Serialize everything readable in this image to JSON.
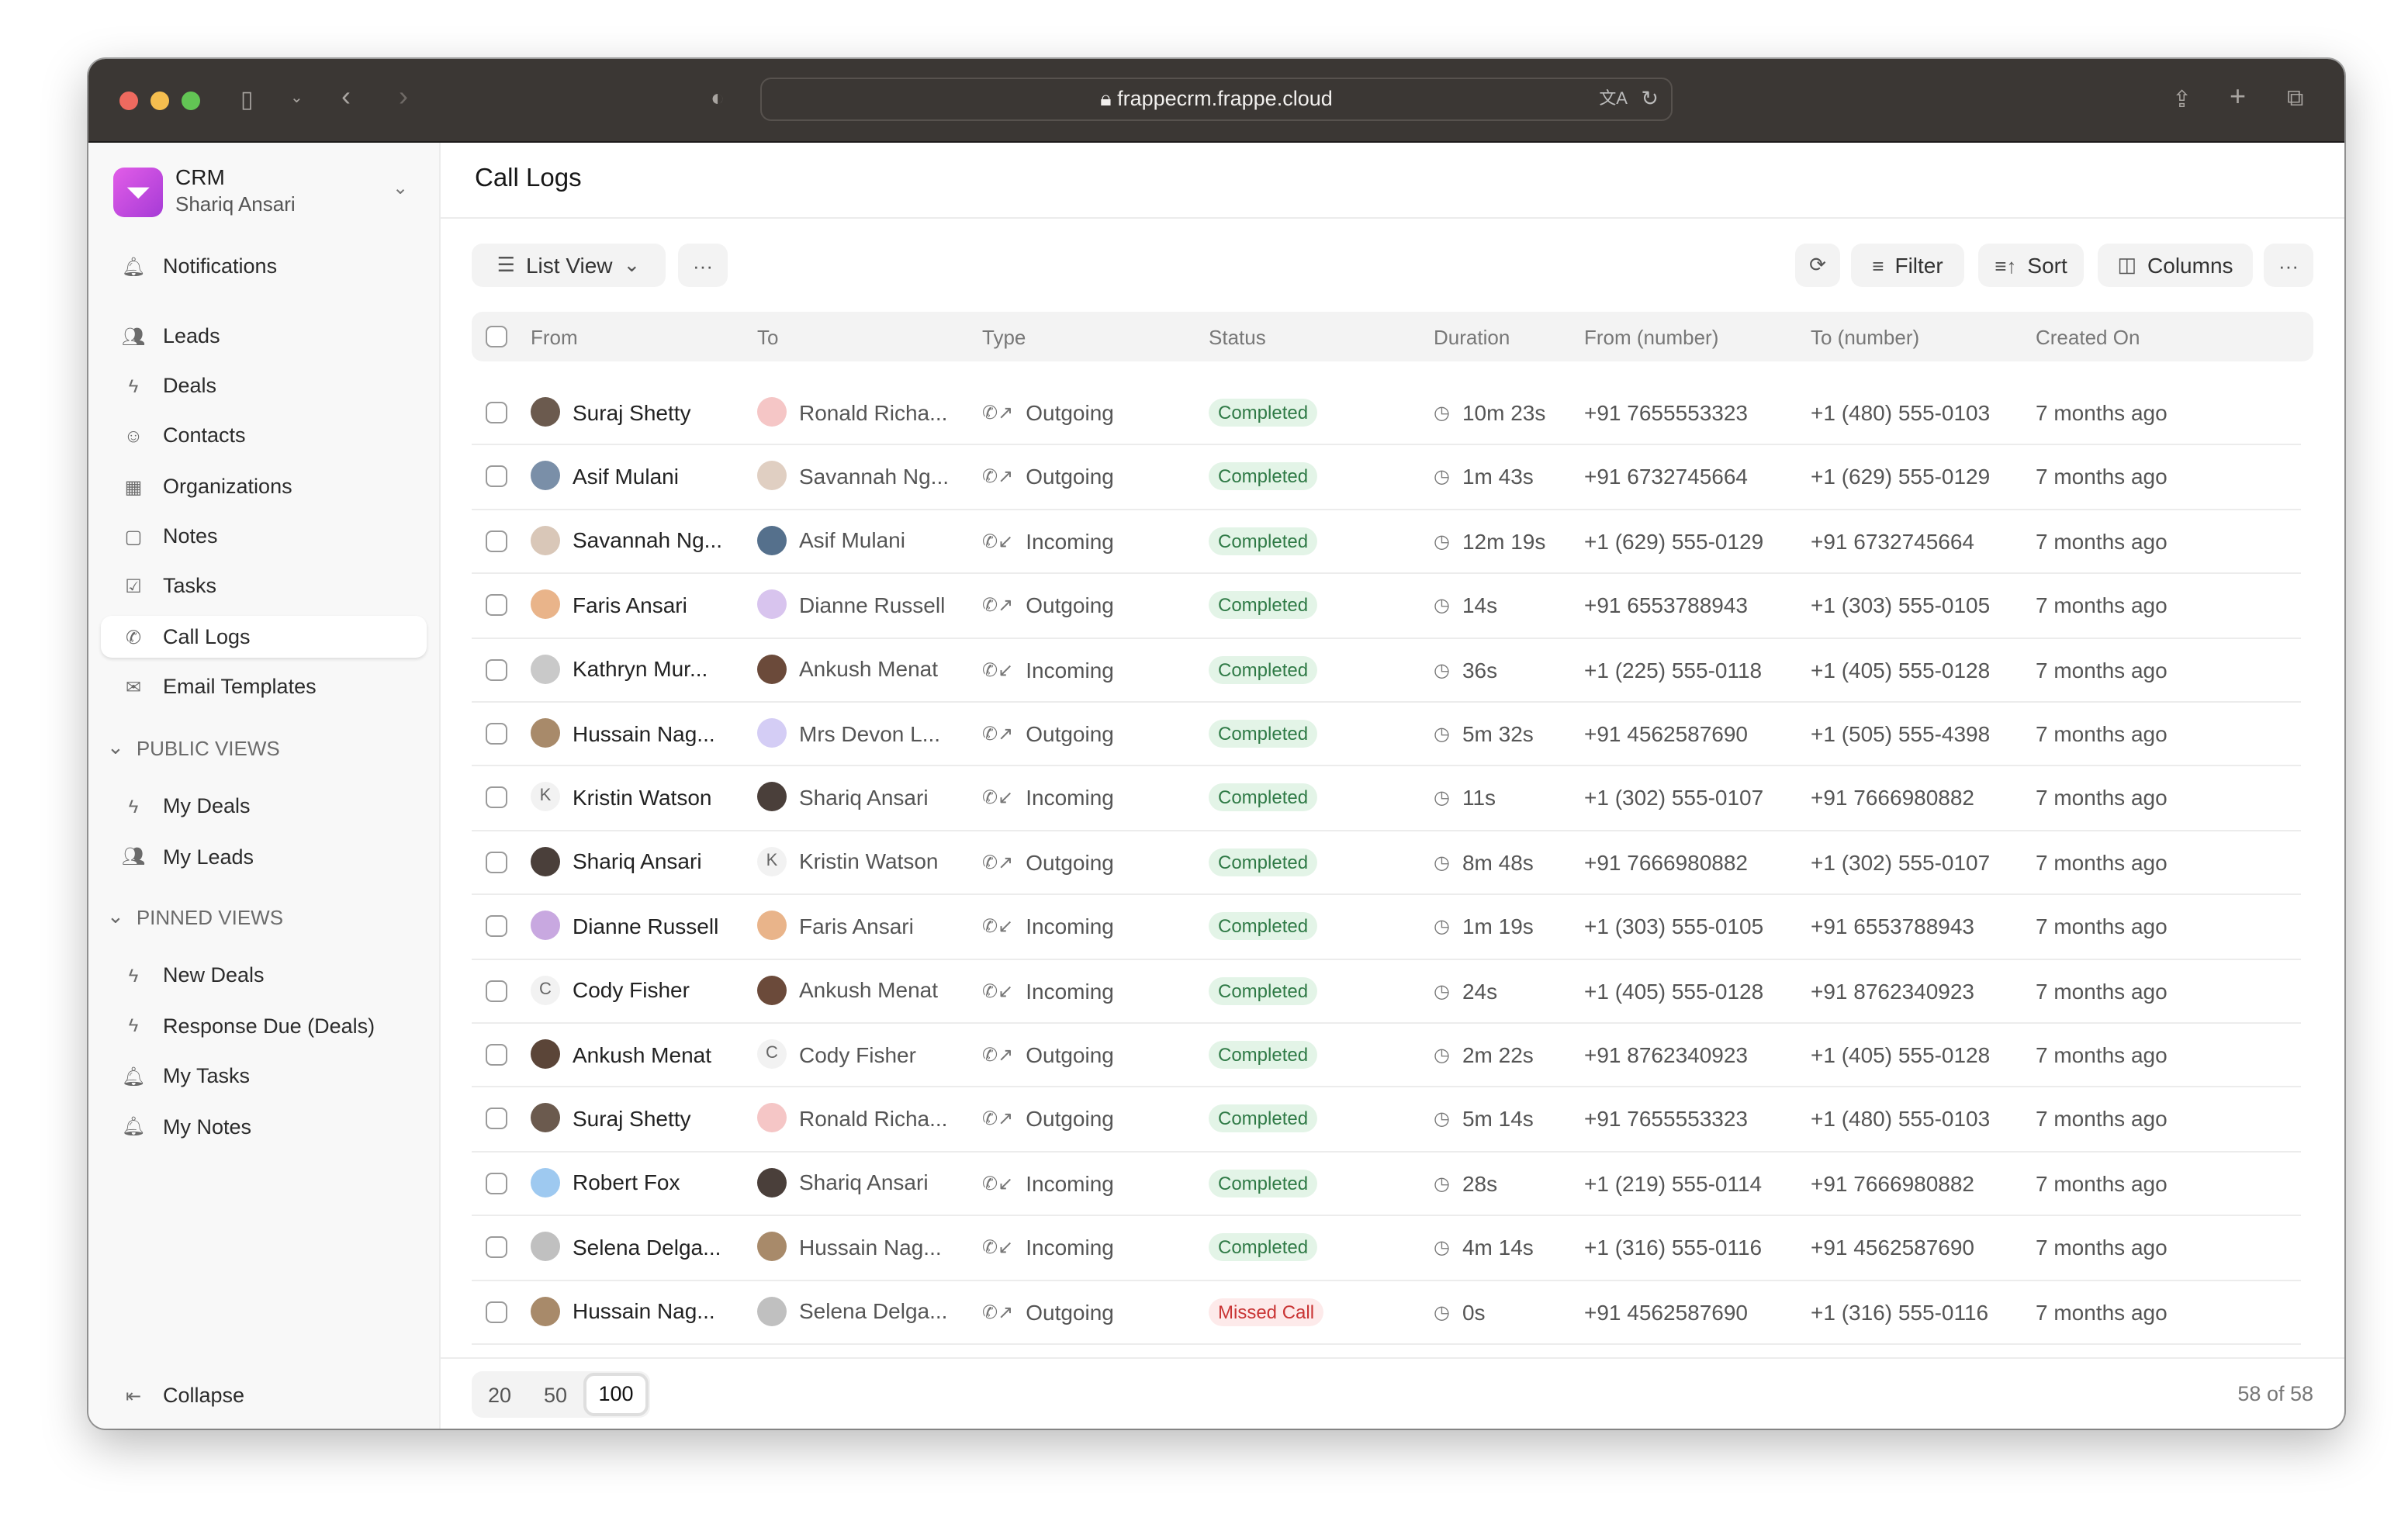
{
  "browser": {
    "url": "frappecrm.frappe.cloud"
  },
  "app": {
    "name": "CRM",
    "user": "Shariq Ansari"
  },
  "sidebar": {
    "items": [
      {
        "label": "Notifications",
        "icon": "bell-icon"
      },
      {
        "label": "Leads",
        "icon": "users-icon"
      },
      {
        "label": "Deals",
        "icon": "zap-icon"
      },
      {
        "label": "Contacts",
        "icon": "contact-icon"
      },
      {
        "label": "Organizations",
        "icon": "building-icon"
      },
      {
        "label": "Notes",
        "icon": "file-icon"
      },
      {
        "label": "Tasks",
        "icon": "checkbox-icon"
      },
      {
        "label": "Call Logs",
        "icon": "phone-icon",
        "active": true
      },
      {
        "label": "Email Templates",
        "icon": "mail-icon"
      }
    ],
    "public_views_label": "PUBLIC VIEWS",
    "public_views": [
      {
        "label": "My Deals",
        "icon": "zap-icon"
      },
      {
        "label": "My Leads",
        "icon": "users-icon"
      }
    ],
    "pinned_views_label": "PINNED VIEWS",
    "pinned_views": [
      {
        "label": "New Deals",
        "icon": "zap-icon"
      },
      {
        "label": "Response Due (Deals)",
        "icon": "zap-icon"
      },
      {
        "label": "My Tasks",
        "icon": "bell-icon"
      },
      {
        "label": "My Notes",
        "icon": "bell-icon"
      }
    ],
    "collapse_label": "Collapse"
  },
  "page": {
    "title": "Call Logs"
  },
  "toolbar": {
    "view_label": "List View",
    "filter_label": "Filter",
    "sort_label": "Sort",
    "columns_label": "Columns"
  },
  "table": {
    "columns": [
      "From",
      "To",
      "Type",
      "Status",
      "Duration",
      "From (number)",
      "To (number)",
      "Created On"
    ],
    "rows": [
      {
        "from": "Suraj Shetty",
        "to": "Ronald Richa...",
        "type": "Outgoing",
        "status": "Completed",
        "duration": "10m 23s",
        "from_number": "+91 7655553323",
        "to_number": "+1 (480) 555-0103",
        "created": "7 months ago"
      },
      {
        "from": "Asif Mulani",
        "to": "Savannah Ng...",
        "type": "Outgoing",
        "status": "Completed",
        "duration": "1m 43s",
        "from_number": "+91 6732745664",
        "to_number": "+1 (629) 555-0129",
        "created": "7 months ago"
      },
      {
        "from": "Savannah Ng...",
        "to": "Asif Mulani",
        "type": "Incoming",
        "status": "Completed",
        "duration": "12m 19s",
        "from_number": "+1 (629) 555-0129",
        "to_number": "+91 6732745664",
        "created": "7 months ago"
      },
      {
        "from": "Faris Ansari",
        "to": "Dianne Russell",
        "type": "Outgoing",
        "status": "Completed",
        "duration": "14s",
        "from_number": "+91 6553788943",
        "to_number": "+1 (303) 555-0105",
        "created": "7 months ago"
      },
      {
        "from": "Kathryn Mur...",
        "to": "Ankush Menat",
        "type": "Incoming",
        "status": "Completed",
        "duration": "36s",
        "from_number": "+1 (225) 555-0118",
        "to_number": "+1 (405) 555-0128",
        "created": "7 months ago"
      },
      {
        "from": "Hussain Nag...",
        "to": "Mrs Devon L...",
        "type": "Outgoing",
        "status": "Completed",
        "duration": "5m 32s",
        "from_number": "+91 4562587690",
        "to_number": "+1 (505) 555-4398",
        "created": "7 months ago"
      },
      {
        "from": "Kristin Watson",
        "from_initial": "K",
        "to": "Shariq Ansari",
        "type": "Incoming",
        "status": "Completed",
        "duration": "11s",
        "from_number": "+1 (302) 555-0107",
        "to_number": "+91 7666980882",
        "created": "7 months ago"
      },
      {
        "from": "Shariq Ansari",
        "to": "Kristin Watson",
        "to_initial": "K",
        "type": "Outgoing",
        "status": "Completed",
        "duration": "8m 48s",
        "from_number": "+91 7666980882",
        "to_number": "+1 (302) 555-0107",
        "created": "7 months ago"
      },
      {
        "from": "Dianne Russell",
        "to": "Faris Ansari",
        "type": "Incoming",
        "status": "Completed",
        "duration": "1m 19s",
        "from_number": "+1 (303) 555-0105",
        "to_number": "+91 6553788943",
        "created": "7 months ago"
      },
      {
        "from": "Cody Fisher",
        "from_initial": "C",
        "to": "Ankush Menat",
        "type": "Incoming",
        "status": "Completed",
        "duration": "24s",
        "from_number": "+1 (405) 555-0128",
        "to_number": "+91 8762340923",
        "created": "7 months ago"
      },
      {
        "from": "Ankush Menat",
        "to": "Cody Fisher",
        "to_initial": "C",
        "type": "Outgoing",
        "status": "Completed",
        "duration": "2m 22s",
        "from_number": "+91 8762340923",
        "to_number": "+1 (405) 555-0128",
        "created": "7 months ago"
      },
      {
        "from": "Suraj Shetty",
        "to": "Ronald Richa...",
        "type": "Outgoing",
        "status": "Completed",
        "duration": "5m 14s",
        "from_number": "+91 7655553323",
        "to_number": "+1 (480) 555-0103",
        "created": "7 months ago"
      },
      {
        "from": "Robert Fox",
        "to": "Shariq Ansari",
        "type": "Incoming",
        "status": "Completed",
        "duration": "28s",
        "from_number": "+1 (219) 555-0114",
        "to_number": "+91 7666980882",
        "created": "7 months ago"
      },
      {
        "from": "Selena Delga...",
        "to": "Hussain Nag...",
        "type": "Incoming",
        "status": "Completed",
        "duration": "4m 14s",
        "from_number": "+1 (316) 555-0116",
        "to_number": "+91 4562587690",
        "created": "7 months ago"
      },
      {
        "from": "Hussain Nag...",
        "to": "Selena Delga...",
        "type": "Outgoing",
        "status": "Missed Call",
        "duration": "0s",
        "from_number": "+91 4562587690",
        "to_number": "+1 (316) 555-0116",
        "created": "7 months ago"
      }
    ]
  },
  "pagination": {
    "options": [
      "20",
      "50",
      "100"
    ],
    "selected": "100",
    "count": "58 of 58"
  },
  "colors": {
    "completed_bg": "#e3f4e7",
    "completed_text": "#2f7a46",
    "missed_bg": "#fdeaea",
    "missed_text": "#c93434",
    "brand": "#c04ee0"
  }
}
